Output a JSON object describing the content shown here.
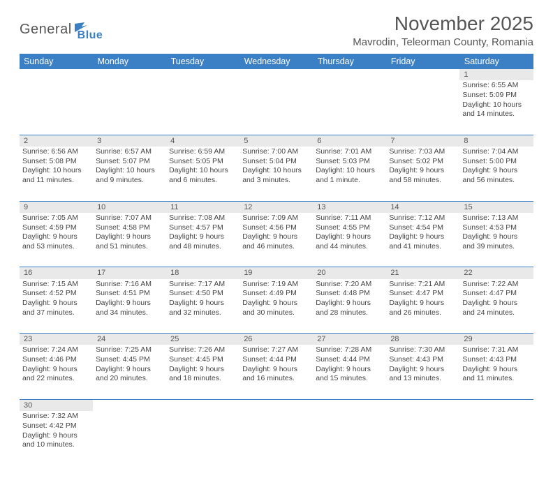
{
  "logo": {
    "word1": "General",
    "word2": "Blue"
  },
  "title": "November 2025",
  "location": "Mavrodin, Teleorman County, Romania",
  "colors": {
    "header_bg": "#3b7fc4",
    "daynum_bg": "#e9e9e9",
    "text": "#444"
  },
  "day_headers": [
    "Sunday",
    "Monday",
    "Tuesday",
    "Wednesday",
    "Thursday",
    "Friday",
    "Saturday"
  ],
  "weeks": [
    {
      "nums": [
        "",
        "",
        "",
        "",
        "",
        "",
        "1"
      ],
      "cells": [
        null,
        null,
        null,
        null,
        null,
        null,
        {
          "sr": "Sunrise: 6:55 AM",
          "ss": "Sunset: 5:09 PM",
          "d1": "Daylight: 10 hours",
          "d2": "and 14 minutes."
        }
      ]
    },
    {
      "nums": [
        "2",
        "3",
        "4",
        "5",
        "6",
        "7",
        "8"
      ],
      "cells": [
        {
          "sr": "Sunrise: 6:56 AM",
          "ss": "Sunset: 5:08 PM",
          "d1": "Daylight: 10 hours",
          "d2": "and 11 minutes."
        },
        {
          "sr": "Sunrise: 6:57 AM",
          "ss": "Sunset: 5:07 PM",
          "d1": "Daylight: 10 hours",
          "d2": "and 9 minutes."
        },
        {
          "sr": "Sunrise: 6:59 AM",
          "ss": "Sunset: 5:05 PM",
          "d1": "Daylight: 10 hours",
          "d2": "and 6 minutes."
        },
        {
          "sr": "Sunrise: 7:00 AM",
          "ss": "Sunset: 5:04 PM",
          "d1": "Daylight: 10 hours",
          "d2": "and 3 minutes."
        },
        {
          "sr": "Sunrise: 7:01 AM",
          "ss": "Sunset: 5:03 PM",
          "d1": "Daylight: 10 hours",
          "d2": "and 1 minute."
        },
        {
          "sr": "Sunrise: 7:03 AM",
          "ss": "Sunset: 5:02 PM",
          "d1": "Daylight: 9 hours",
          "d2": "and 58 minutes."
        },
        {
          "sr": "Sunrise: 7:04 AM",
          "ss": "Sunset: 5:00 PM",
          "d1": "Daylight: 9 hours",
          "d2": "and 56 minutes."
        }
      ]
    },
    {
      "nums": [
        "9",
        "10",
        "11",
        "12",
        "13",
        "14",
        "15"
      ],
      "cells": [
        {
          "sr": "Sunrise: 7:05 AM",
          "ss": "Sunset: 4:59 PM",
          "d1": "Daylight: 9 hours",
          "d2": "and 53 minutes."
        },
        {
          "sr": "Sunrise: 7:07 AM",
          "ss": "Sunset: 4:58 PM",
          "d1": "Daylight: 9 hours",
          "d2": "and 51 minutes."
        },
        {
          "sr": "Sunrise: 7:08 AM",
          "ss": "Sunset: 4:57 PM",
          "d1": "Daylight: 9 hours",
          "d2": "and 48 minutes."
        },
        {
          "sr": "Sunrise: 7:09 AM",
          "ss": "Sunset: 4:56 PM",
          "d1": "Daylight: 9 hours",
          "d2": "and 46 minutes."
        },
        {
          "sr": "Sunrise: 7:11 AM",
          "ss": "Sunset: 4:55 PM",
          "d1": "Daylight: 9 hours",
          "d2": "and 44 minutes."
        },
        {
          "sr": "Sunrise: 7:12 AM",
          "ss": "Sunset: 4:54 PM",
          "d1": "Daylight: 9 hours",
          "d2": "and 41 minutes."
        },
        {
          "sr": "Sunrise: 7:13 AM",
          "ss": "Sunset: 4:53 PM",
          "d1": "Daylight: 9 hours",
          "d2": "and 39 minutes."
        }
      ]
    },
    {
      "nums": [
        "16",
        "17",
        "18",
        "19",
        "20",
        "21",
        "22"
      ],
      "cells": [
        {
          "sr": "Sunrise: 7:15 AM",
          "ss": "Sunset: 4:52 PM",
          "d1": "Daylight: 9 hours",
          "d2": "and 37 minutes."
        },
        {
          "sr": "Sunrise: 7:16 AM",
          "ss": "Sunset: 4:51 PM",
          "d1": "Daylight: 9 hours",
          "d2": "and 34 minutes."
        },
        {
          "sr": "Sunrise: 7:17 AM",
          "ss": "Sunset: 4:50 PM",
          "d1": "Daylight: 9 hours",
          "d2": "and 32 minutes."
        },
        {
          "sr": "Sunrise: 7:19 AM",
          "ss": "Sunset: 4:49 PM",
          "d1": "Daylight: 9 hours",
          "d2": "and 30 minutes."
        },
        {
          "sr": "Sunrise: 7:20 AM",
          "ss": "Sunset: 4:48 PM",
          "d1": "Daylight: 9 hours",
          "d2": "and 28 minutes."
        },
        {
          "sr": "Sunrise: 7:21 AM",
          "ss": "Sunset: 4:47 PM",
          "d1": "Daylight: 9 hours",
          "d2": "and 26 minutes."
        },
        {
          "sr": "Sunrise: 7:22 AM",
          "ss": "Sunset: 4:47 PM",
          "d1": "Daylight: 9 hours",
          "d2": "and 24 minutes."
        }
      ]
    },
    {
      "nums": [
        "23",
        "24",
        "25",
        "26",
        "27",
        "28",
        "29"
      ],
      "cells": [
        {
          "sr": "Sunrise: 7:24 AM",
          "ss": "Sunset: 4:46 PM",
          "d1": "Daylight: 9 hours",
          "d2": "and 22 minutes."
        },
        {
          "sr": "Sunrise: 7:25 AM",
          "ss": "Sunset: 4:45 PM",
          "d1": "Daylight: 9 hours",
          "d2": "and 20 minutes."
        },
        {
          "sr": "Sunrise: 7:26 AM",
          "ss": "Sunset: 4:45 PM",
          "d1": "Daylight: 9 hours",
          "d2": "and 18 minutes."
        },
        {
          "sr": "Sunrise: 7:27 AM",
          "ss": "Sunset: 4:44 PM",
          "d1": "Daylight: 9 hours",
          "d2": "and 16 minutes."
        },
        {
          "sr": "Sunrise: 7:28 AM",
          "ss": "Sunset: 4:44 PM",
          "d1": "Daylight: 9 hours",
          "d2": "and 15 minutes."
        },
        {
          "sr": "Sunrise: 7:30 AM",
          "ss": "Sunset: 4:43 PM",
          "d1": "Daylight: 9 hours",
          "d2": "and 13 minutes."
        },
        {
          "sr": "Sunrise: 7:31 AM",
          "ss": "Sunset: 4:43 PM",
          "d1": "Daylight: 9 hours",
          "d2": "and 11 minutes."
        }
      ]
    },
    {
      "nums": [
        "30",
        "",
        "",
        "",
        "",
        "",
        ""
      ],
      "cells": [
        {
          "sr": "Sunrise: 7:32 AM",
          "ss": "Sunset: 4:42 PM",
          "d1": "Daylight: 9 hours",
          "d2": "and 10 minutes."
        },
        null,
        null,
        null,
        null,
        null,
        null
      ]
    }
  ]
}
